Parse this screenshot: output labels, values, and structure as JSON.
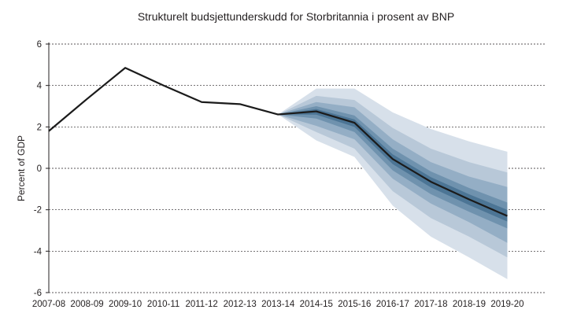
{
  "chart_data": {
    "type": "area",
    "title": "Strukturelt budsjettunderskudd for Storbritannia i prosent av BNP",
    "xlabel": "",
    "ylabel": "Percent of GDP",
    "ylim": [
      -6,
      6
    ],
    "y_ticks": [
      "6",
      "4",
      "2",
      "0",
      "-2",
      "-4",
      "-6"
    ],
    "y_tick_values": [
      6,
      4,
      2,
      0,
      -2,
      -4,
      -6
    ],
    "grid": "horizontal dashed",
    "categories": [
      "2007-08",
      "2008-09",
      "2009-10",
      "2010-11",
      "2011-12",
      "2012-13",
      "2013-14",
      "2014-15",
      "2015-16",
      "2016-17",
      "2017-18",
      "2018-19",
      "2019-20"
    ],
    "series": [
      {
        "values": [
          1.8,
          3.35,
          4.85,
          4.0,
          3.2,
          3.1,
          2.6,
          2.75,
          2.2,
          0.45,
          -0.65,
          -1.5,
          -2.3
        ]
      }
    ],
    "fan_bands": {
      "start_category": "2013-14",
      "colors": [
        "#d7e0ea",
        "#b8c8d8",
        "#94aec5",
        "#6f92ae",
        "#4c7595"
      ],
      "bands": [
        {
          "upper": [
            2.6,
            3.85,
            3.85,
            2.7,
            1.9,
            1.3,
            0.8
          ],
          "lower": [
            2.6,
            1.35,
            0.55,
            -1.8,
            -3.3,
            -4.3,
            -5.35
          ]
        },
        {
          "upper": [
            2.6,
            3.5,
            3.3,
            1.95,
            0.95,
            0.3,
            -0.2
          ],
          "lower": [
            2.6,
            1.75,
            0.95,
            -1.1,
            -2.4,
            -3.3,
            -4.3
          ]
        },
        {
          "upper": [
            2.6,
            3.2,
            2.95,
            1.4,
            0.3,
            -0.4,
            -0.9
          ],
          "lower": [
            2.6,
            2.05,
            1.4,
            -0.5,
            -1.7,
            -2.6,
            -3.6
          ]
        },
        {
          "upper": [
            2.6,
            3.0,
            2.55,
            0.95,
            -0.15,
            -0.95,
            -1.65
          ],
          "lower": [
            2.6,
            2.4,
            1.75,
            -0.1,
            -1.25,
            -2.1,
            -2.9
          ]
        }
      ]
    }
  }
}
